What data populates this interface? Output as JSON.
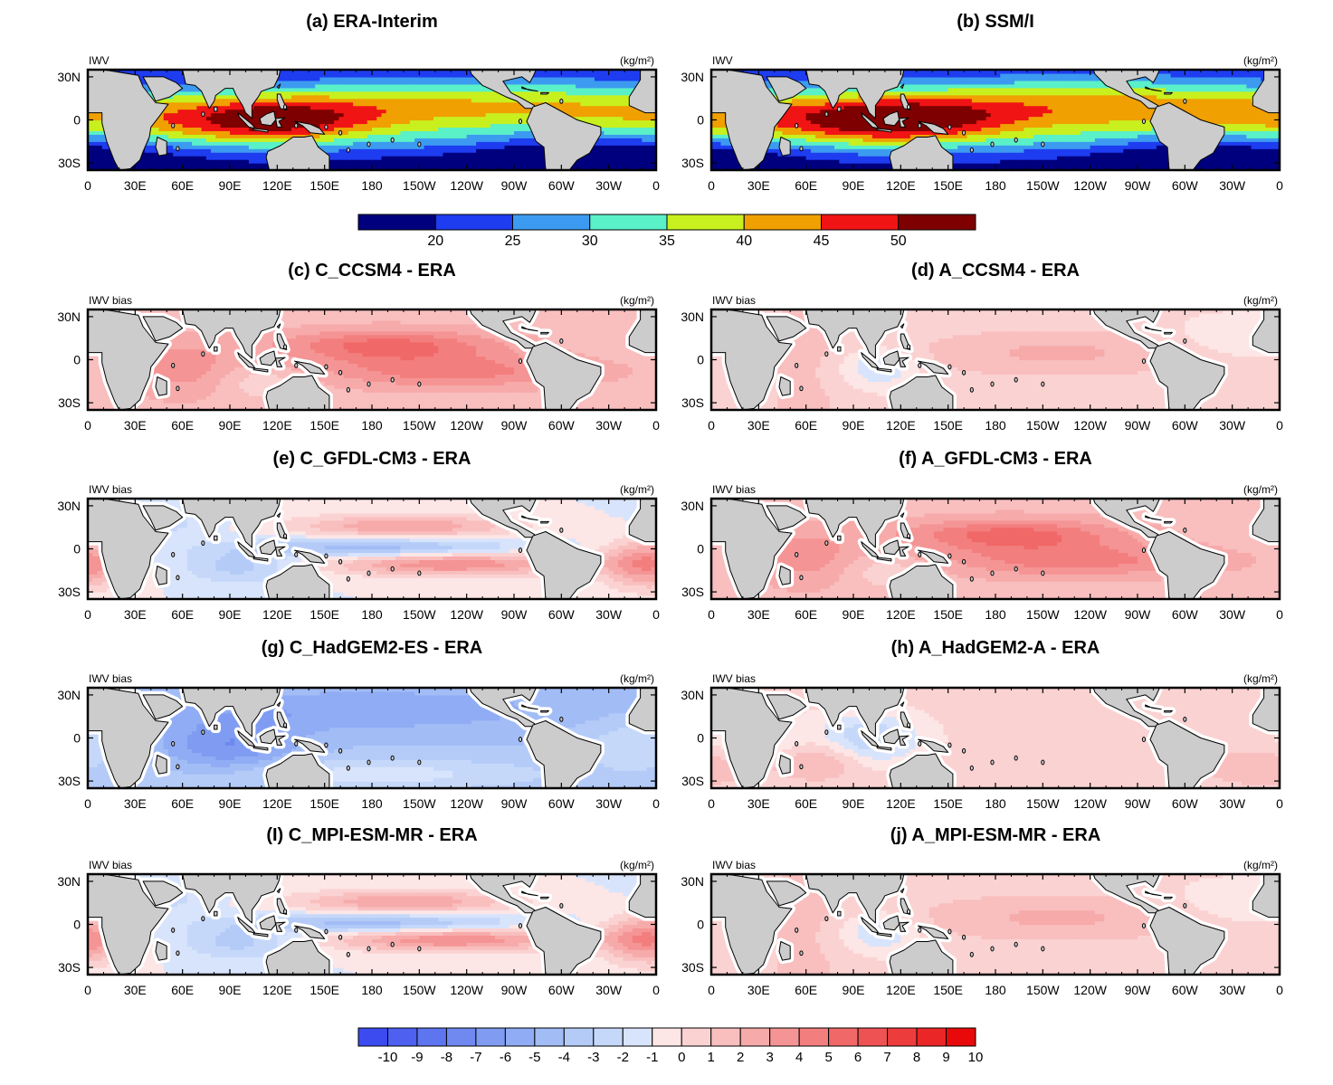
{
  "figure": {
    "top_units": "IWV",
    "bias_units": "IWV bias",
    "unit_label": "(kg/m²)",
    "lon_ticks": [
      "0",
      "30E",
      "60E",
      "90E",
      "120E",
      "150E",
      "180",
      "150W",
      "120W",
      "90W",
      "60W",
      "30W",
      "0"
    ],
    "lat_ticks": [
      "30N",
      "0",
      "30S"
    ]
  },
  "chart_data": [
    {
      "id": "a",
      "type": "heatmap",
      "title": "(a) ERA-Interim",
      "field": "IWV",
      "kind": "abs",
      "xlim": [
        0,
        360
      ],
      "ylim": [
        -35,
        35
      ],
      "xlabel": "",
      "ylabel": ""
    },
    {
      "id": "b",
      "type": "heatmap",
      "title": "(b) SSM/I",
      "field": "IWV",
      "kind": "abs",
      "xlim": [
        0,
        360
      ],
      "ylim": [
        -35,
        35
      ],
      "xlabel": "",
      "ylabel": ""
    },
    {
      "id": "c",
      "type": "heatmap",
      "title": "(c) C_CCSM4 - ERA",
      "field": "IWV bias",
      "kind": "bias",
      "pattern": "warm",
      "xlim": [
        0,
        360
      ],
      "ylim": [
        -35,
        35
      ]
    },
    {
      "id": "d",
      "type": "heatmap",
      "title": "(d) A_CCSM4 - ERA",
      "field": "IWV bias",
      "kind": "bias",
      "pattern": "mild",
      "xlim": [
        0,
        360
      ],
      "ylim": [
        -35,
        35
      ]
    },
    {
      "id": "e",
      "type": "heatmap",
      "title": "(e) C_GFDL-CM3 - ERA",
      "field": "IWV bias",
      "kind": "bias",
      "pattern": "doubleitcz",
      "xlim": [
        0,
        360
      ],
      "ylim": [
        -35,
        35
      ]
    },
    {
      "id": "f",
      "type": "heatmap",
      "title": "(f) A_GFDL-CM3 - ERA",
      "field": "IWV bias",
      "kind": "bias",
      "pattern": "warm",
      "xlim": [
        0,
        360
      ],
      "ylim": [
        -35,
        35
      ]
    },
    {
      "id": "g",
      "type": "heatmap",
      "title": "(g) C_HadGEM2-ES - ERA",
      "field": "IWV bias",
      "kind": "bias",
      "pattern": "dry",
      "xlim": [
        0,
        360
      ],
      "ylim": [
        -35,
        35
      ]
    },
    {
      "id": "h",
      "type": "heatmap",
      "title": "(h) A_HadGEM2-A - ERA",
      "field": "IWV bias",
      "kind": "bias",
      "pattern": "mixed",
      "xlim": [
        0,
        360
      ],
      "ylim": [
        -35,
        35
      ]
    },
    {
      "id": "i",
      "type": "heatmap",
      "title": "(I) C_MPI-ESM-MR - ERA",
      "field": "IWV bias",
      "kind": "bias",
      "pattern": "doubleitcz",
      "xlim": [
        0,
        360
      ],
      "ylim": [
        -35,
        35
      ]
    },
    {
      "id": "j",
      "type": "heatmap",
      "title": "(j) A_MPI-ESM-MR - ERA",
      "field": "IWV bias",
      "kind": "bias",
      "pattern": "mild",
      "xlim": [
        0,
        360
      ],
      "ylim": [
        -35,
        35
      ]
    }
  ],
  "colorbars": {
    "absolute": {
      "labels": [
        "20",
        "25",
        "30",
        "35",
        "40",
        "45",
        "50"
      ],
      "colors": [
        "#00007f",
        "#1e3cf0",
        "#3c9bf0",
        "#5af0c8",
        "#c8f01e",
        "#f0a000",
        "#f01414",
        "#7f0000"
      ]
    },
    "bias": {
      "labels": [
        "-10",
        "-9",
        "-8",
        "-7",
        "-6",
        "-5",
        "-4",
        "-3",
        "-2",
        "-1",
        "0",
        "1",
        "2",
        "3",
        "4",
        "5",
        "6",
        "7",
        "8",
        "9",
        "10"
      ],
      "colors": [
        "#3c4bf0",
        "#4d60f0",
        "#5e75f0",
        "#6f89f0",
        "#7f9cf2",
        "#90acf4",
        "#a2bcf6",
        "#b4cbf8",
        "#c6d8fa",
        "#d8e4fc",
        "#fde6e6",
        "#fbd2d2",
        "#f9bebe",
        "#f7aaaa",
        "#f59494",
        "#f37e7e",
        "#f16868",
        "#ef5252",
        "#ed3c3c",
        "#eb2626",
        "#e80a0a"
      ]
    }
  }
}
